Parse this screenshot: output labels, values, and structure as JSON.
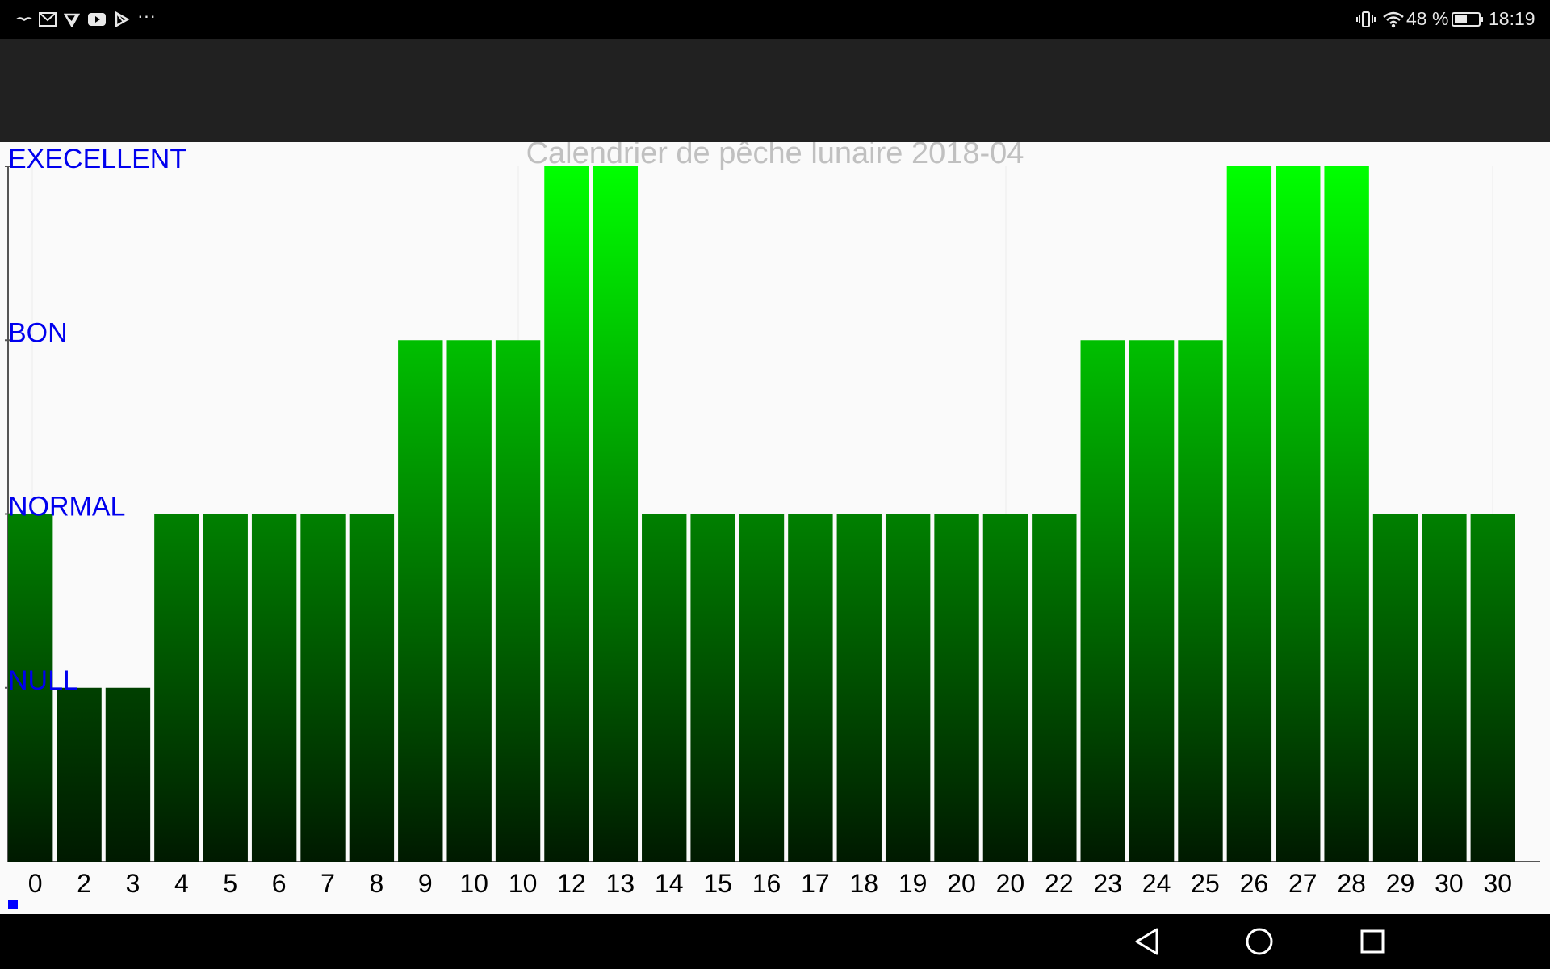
{
  "status_bar": {
    "battery_percent": "48 %",
    "time": "18:19",
    "left_icons": [
      "bird-icon",
      "gmail-icon",
      "delivery-icon",
      "youtube-icon",
      "play-store-icon",
      "more-notifications-icon"
    ],
    "more_label": "···",
    "right_icons": [
      "vibrate-icon",
      "wifi-icon",
      "battery-icon"
    ]
  },
  "navigation": {
    "buttons": [
      "back-icon",
      "home-icon",
      "recents-icon"
    ]
  },
  "colors": {
    "bar_top_max": "#00ff00",
    "bar_bottom": "#001a00",
    "axis_label": "#0000ee",
    "title": "#c0c0c0",
    "legend_square": "#0000ff"
  },
  "chart_data": {
    "type": "bar",
    "title": "Calendrier de pêche lunaire 2018-04",
    "xlabel": "",
    "ylabel": "",
    "y_levels": [
      "NULL",
      "NORMAL",
      "BON",
      "EXECELLENT"
    ],
    "ylim": [
      0,
      4
    ],
    "categories": [
      "0",
      "2",
      "3",
      "4",
      "5",
      "6",
      "7",
      "8",
      "9",
      "10",
      "10",
      "12",
      "13",
      "14",
      "15",
      "16",
      "17",
      "18",
      "19",
      "20",
      "20",
      "22",
      "23",
      "24",
      "25",
      "26",
      "27",
      "28",
      "29",
      "30",
      "30"
    ],
    "values": [
      2,
      1,
      1,
      2,
      2,
      2,
      2,
      2,
      3,
      3,
      3,
      4,
      4,
      2,
      2,
      2,
      2,
      2,
      2,
      2,
      2,
      2,
      3,
      3,
      3,
      4,
      4,
      4,
      2,
      2,
      2
    ],
    "grid": true,
    "legend": "bottom-left"
  }
}
